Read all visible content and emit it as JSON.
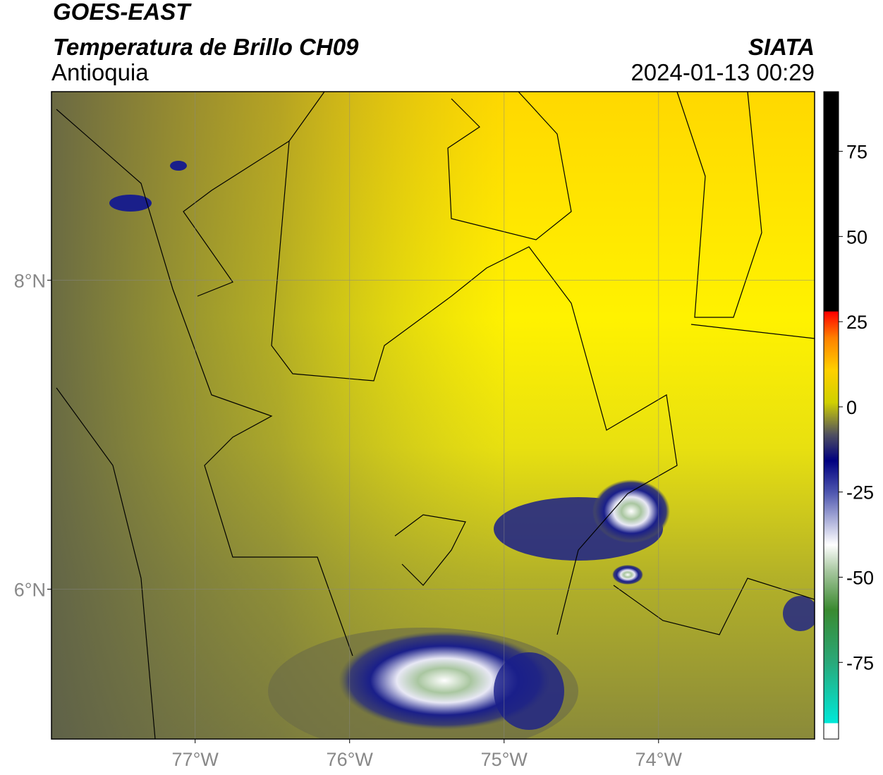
{
  "header": {
    "title": "GOES-EAST",
    "subtitle": "Temperatura de Brillo CH09",
    "region": "Antioquia",
    "source": "SIATA",
    "datetime": "2024-01-13 00:29"
  },
  "map": {
    "xlim": [
      -77.93,
      -72.99
    ],
    "ylim": [
      5.03,
      9.22
    ],
    "xticks": [
      {
        "value": -77,
        "label": "77°W"
      },
      {
        "value": -76,
        "label": "76°W"
      },
      {
        "value": -75,
        "label": "75°W"
      },
      {
        "value": -74,
        "label": "74°W"
      }
    ],
    "yticks": [
      {
        "value": 6,
        "label": "6°N"
      },
      {
        "value": 8,
        "label": "8°N"
      }
    ],
    "grid": true
  },
  "colorbar": {
    "lim": [
      -97.5,
      92.5
    ],
    "ticks": [
      75,
      50,
      25,
      0,
      -25,
      -50,
      -75
    ]
  }
}
